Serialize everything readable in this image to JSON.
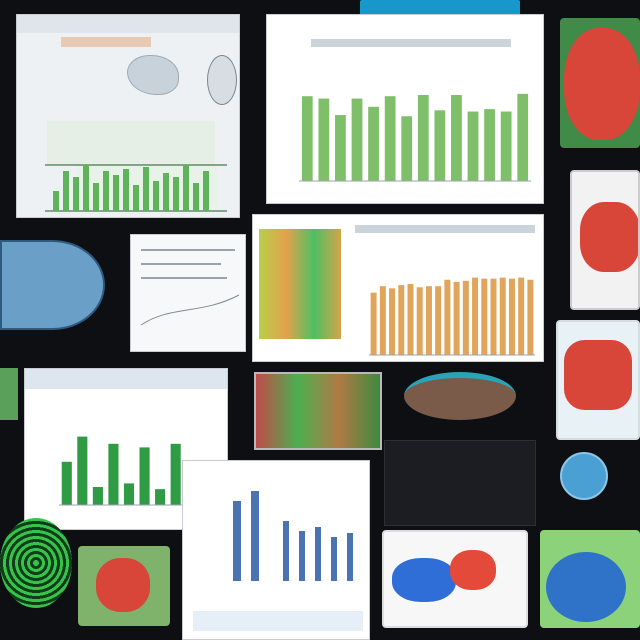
{
  "page": {
    "background": "#0d0f12",
    "accent_green": "#7fbf6a",
    "accent_orange": "#e0a45a",
    "accent_red": "#d8463a",
    "accent_blue": "#3c7ad6"
  },
  "top_banner": {
    "color": "#1aa6e0"
  },
  "chart_data": [
    {
      "type": "bar",
      "categories": [
        "",
        "",
        "",
        "",
        "",
        "",
        "",
        "",
        "",
        "",
        "",
        "",
        "",
        ""
      ],
      "values": [
        7.2,
        7.0,
        5.6,
        7.0,
        6.3,
        7.2,
        5.5,
        7.3,
        6.0,
        7.3,
        5.9,
        6.1,
        5.9,
        7.4
      ],
      "ylim": [
        0,
        9
      ],
      "color": "#7fbf6a"
    },
    {
      "type": "bar",
      "categories": [
        "",
        "",
        "",
        "",
        "",
        "",
        "",
        "",
        "",
        "",
        "",
        "",
        "",
        "",
        "",
        "",
        "",
        ""
      ],
      "values": [
        5.8,
        6.4,
        6.2,
        6.5,
        6.6,
        6.3,
        6.4,
        6.4,
        7.0,
        6.8,
        6.9,
        7.2,
        7.1,
        7.1,
        7.2,
        7.1,
        7.2,
        7.0
      ],
      "ylim": [
        0,
        8
      ],
      "color": "#e0a45a"
    },
    {
      "type": "bar",
      "categories": [
        "",
        "",
        "",
        "",
        "",
        "",
        "",
        "",
        ""
      ],
      "values": [
        6.0,
        9.5,
        2.5,
        8.5,
        3.0,
        8.0,
        2.2,
        8.5,
        2.0
      ],
      "ylim": [
        0,
        10
      ],
      "color": "#2f9b45"
    }
  ],
  "icons": {
    "red_coral": "coral-image-icon",
    "blue_shell": "shell-image-icon",
    "red_starfish": "starfish-image-icon",
    "green_swirl": "spiral-image-icon",
    "blue_bird": "bird-image-icon"
  }
}
